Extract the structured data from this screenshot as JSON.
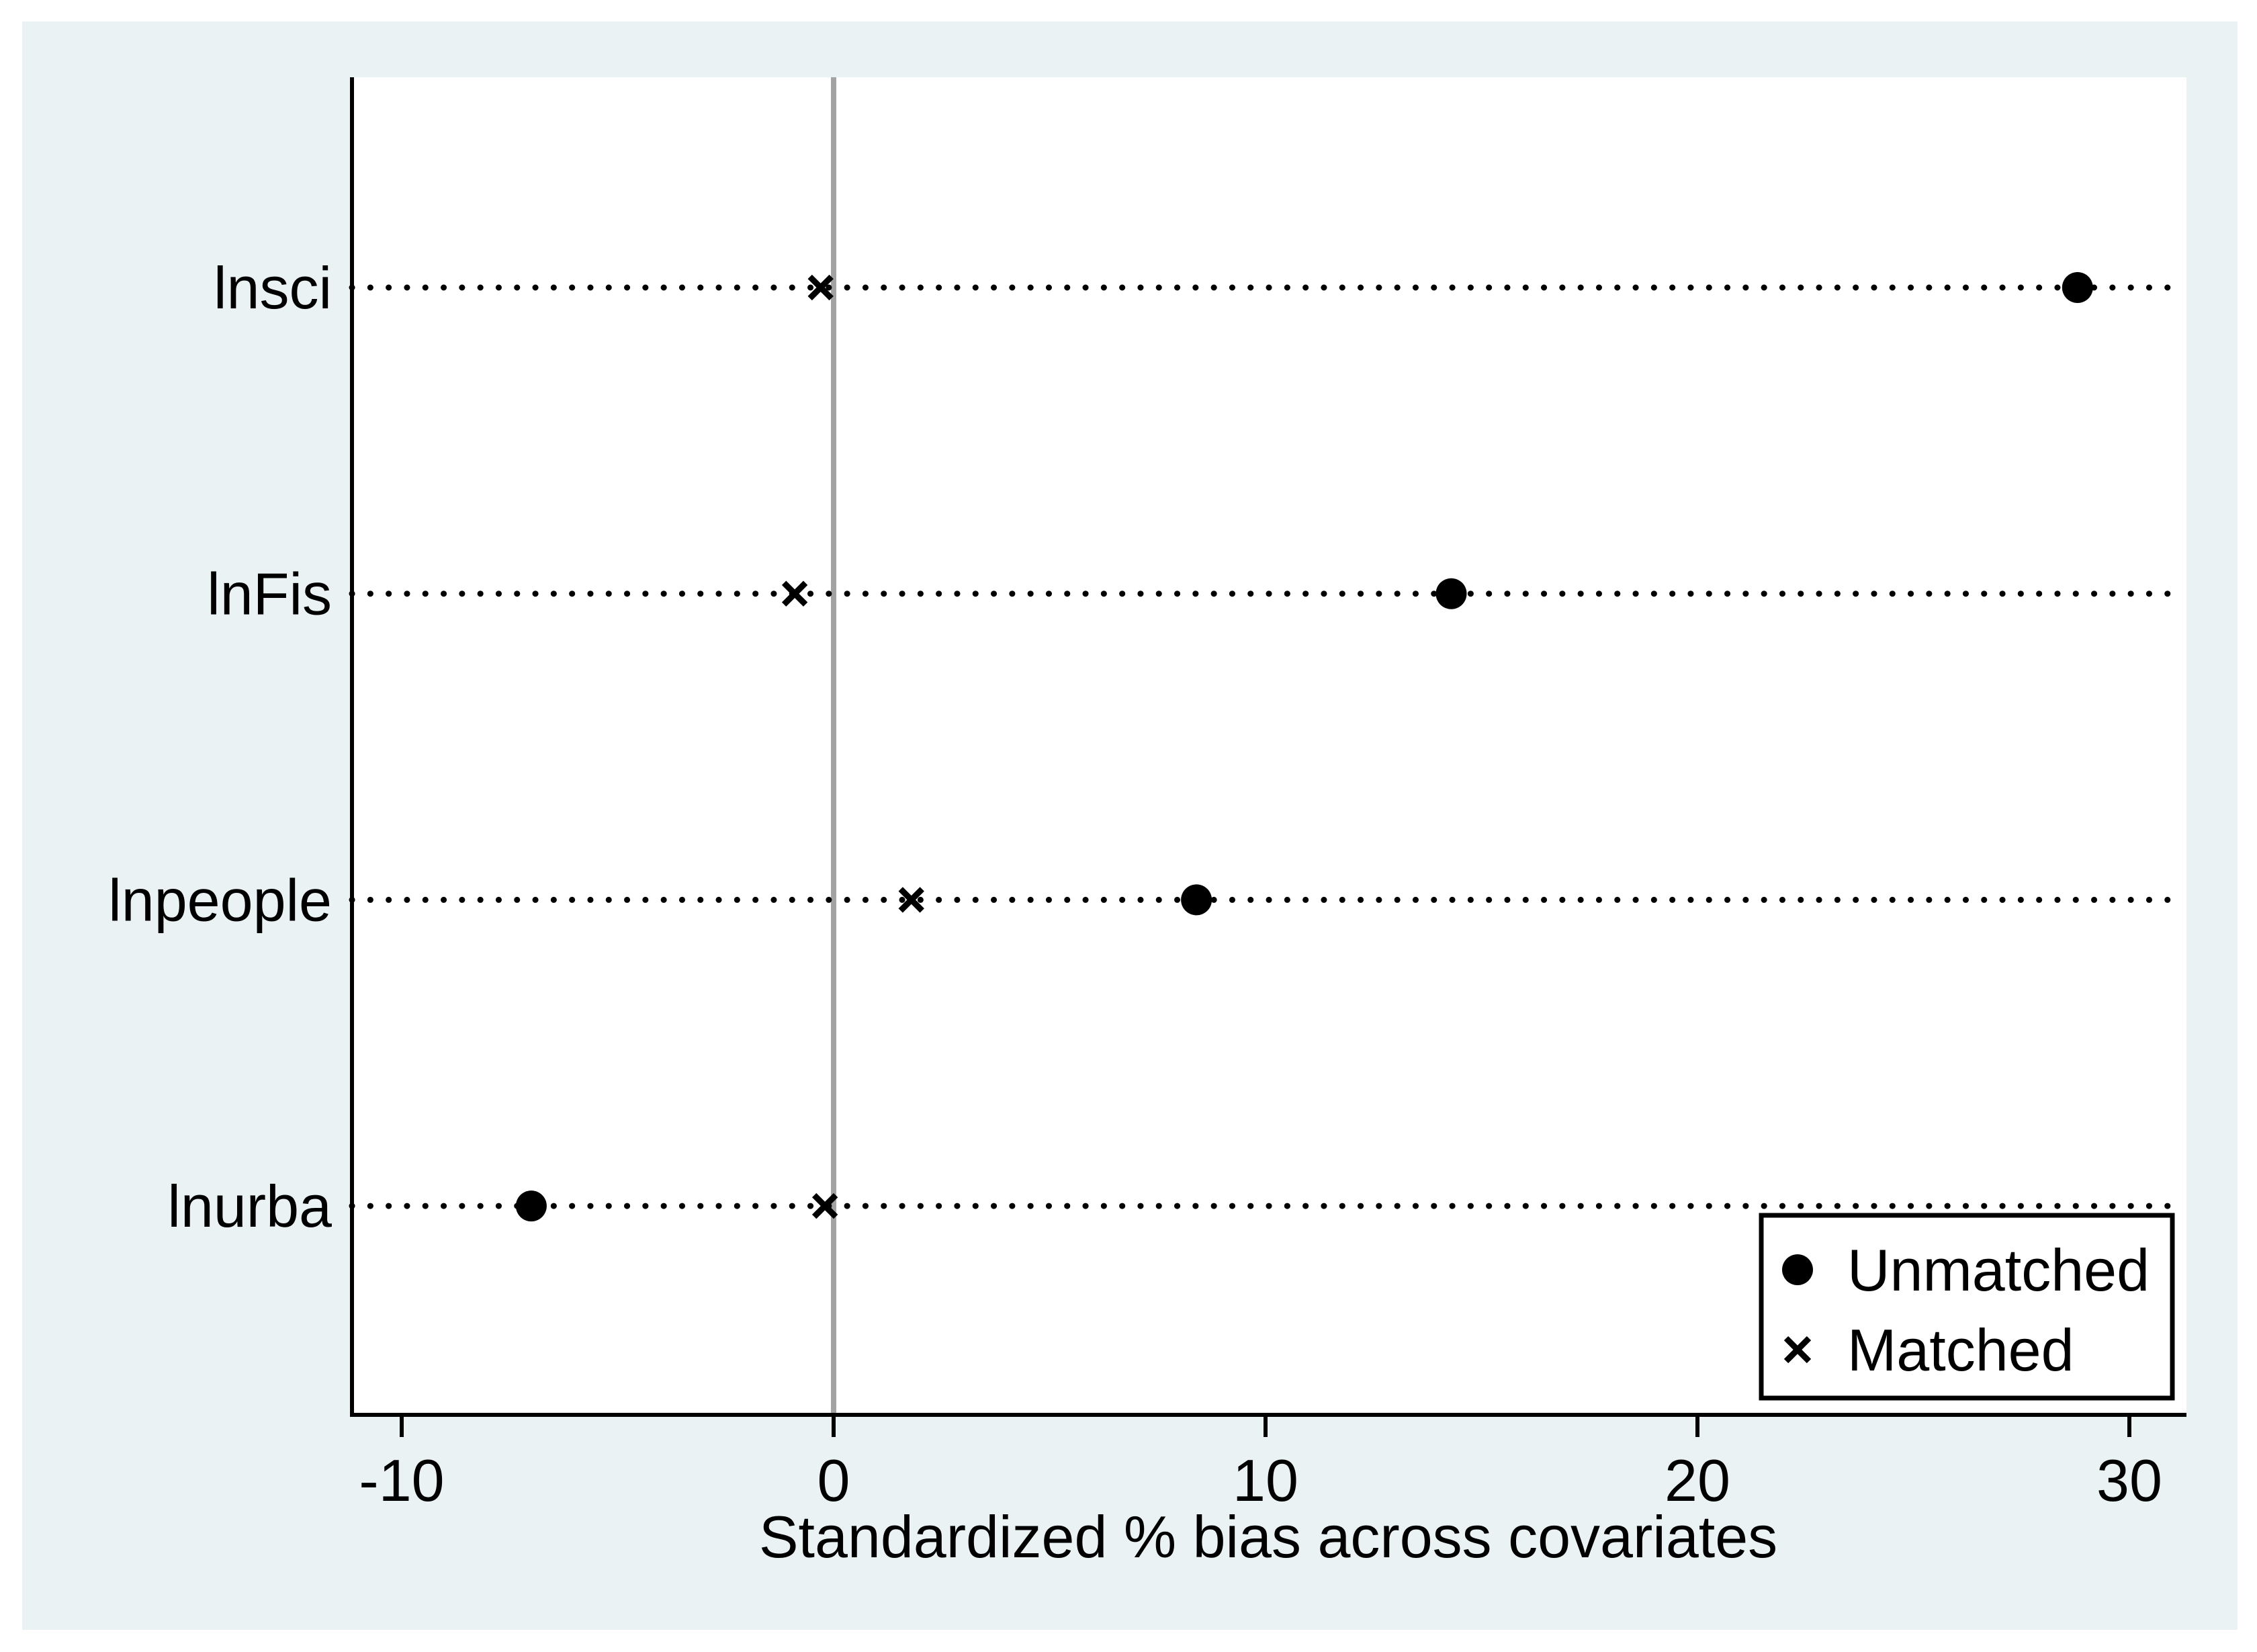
{
  "figure": {
    "outer_background": "#ffffff",
    "canvas_background": "#eaf2f3",
    "plot_background": "#ffffff",
    "axis_color": "#000000",
    "marker_color": "#000000",
    "zero_line_color": "#a3a3a3"
  },
  "chart_data": {
    "type": "scatter",
    "subtype": "covariate-balance-dot-plot",
    "title": "",
    "xlabel": "Standardized % bias across covariates",
    "categories": [
      "lnsci",
      "lnFis",
      "lnpeople",
      "lnurba"
    ],
    "series": [
      {
        "name": "Unmatched",
        "marker": "circle",
        "values": [
          28.8,
          14.3,
          8.4,
          -7.0
        ]
      },
      {
        "name": "Matched",
        "marker": "x",
        "values": [
          -0.3,
          -0.9,
          1.8,
          -0.2
        ]
      }
    ],
    "xticks": [
      -10,
      0,
      10,
      20,
      30
    ],
    "xlim": [
      -11.2,
      31.3
    ],
    "reference_line_x": 0,
    "grid": "dotted-horizontal-rows",
    "legend_position": "bottom-right"
  }
}
